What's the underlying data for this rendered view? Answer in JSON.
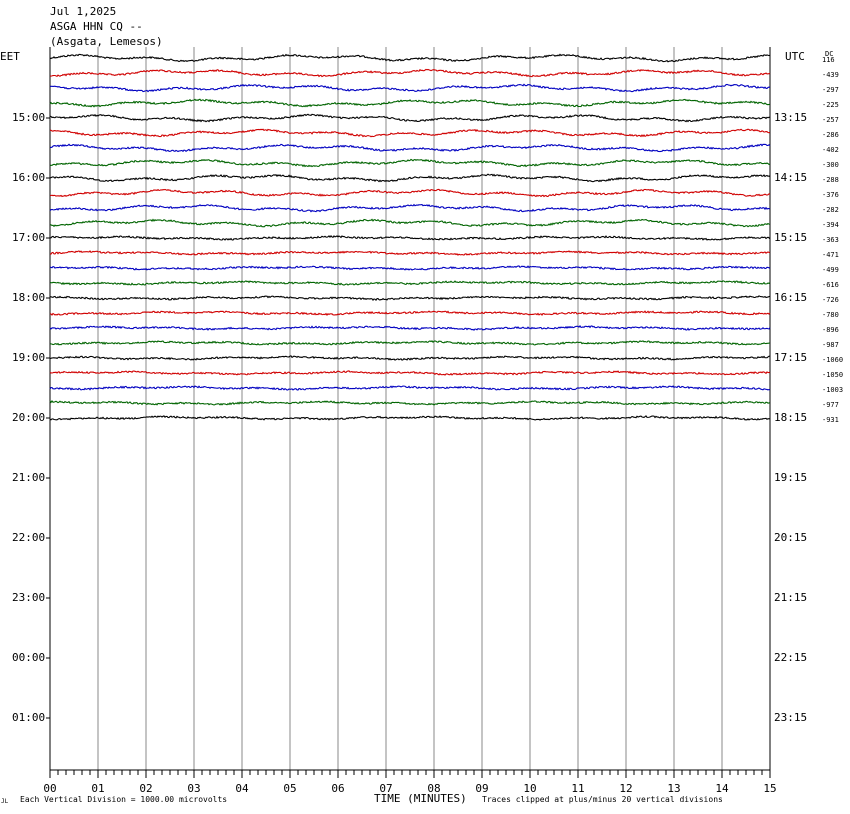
{
  "header": {
    "date": "Jul 1,2025",
    "station": "ASGA HHN CQ --",
    "location": "(Asgata, Lemesos)"
  },
  "left_tz": "EET",
  "right_tz": "UTC",
  "dc_label": "DC",
  "footer": {
    "corner_mark": "JL",
    "scale_note": "Each Vertical Division = 1000.00 microvolts",
    "x_title": "TIME (MINUTES)",
    "clip_note": "Traces clipped at plus/minus 20 vertical divisions"
  },
  "colors": [
    "#000000",
    "#d00000",
    "#0000c0",
    "#006400"
  ],
  "chart_data": {
    "type": "line",
    "title": "ASGA HHN CQ --",
    "xlabel": "TIME (MINUTES)",
    "xlim": [
      0,
      15
    ],
    "x_ticks": [
      "00",
      "01",
      "02",
      "03",
      "04",
      "05",
      "06",
      "07",
      "08",
      "09",
      "10",
      "11",
      "12",
      "13",
      "14",
      "15"
    ],
    "rows_total": 48,
    "rows_per_hour": 4,
    "left_hour_labels": [
      "15:00",
      "16:00",
      "17:00",
      "18:00",
      "19:00",
      "20:00",
      "21:00",
      "22:00",
      "23:00",
      "00:00",
      "01:00"
    ],
    "right_hour_labels": [
      "13:15",
      "14:15",
      "15:15",
      "16:15",
      "17:15",
      "18:15",
      "19:15",
      "20:15",
      "21:15",
      "22:15",
      "23:15"
    ],
    "trace_dc_offsets": [
      "116",
      "-439",
      "-297",
      "-225",
      "-257",
      "-286",
      "-402",
      "-300",
      "-288",
      "-376",
      "-282",
      "-394",
      "-363",
      "-471",
      "-499",
      "-616",
      "-726",
      "-780",
      "-896",
      "-987",
      "-1060",
      "-1050",
      "-1003",
      "-977",
      "-931"
    ]
  }
}
